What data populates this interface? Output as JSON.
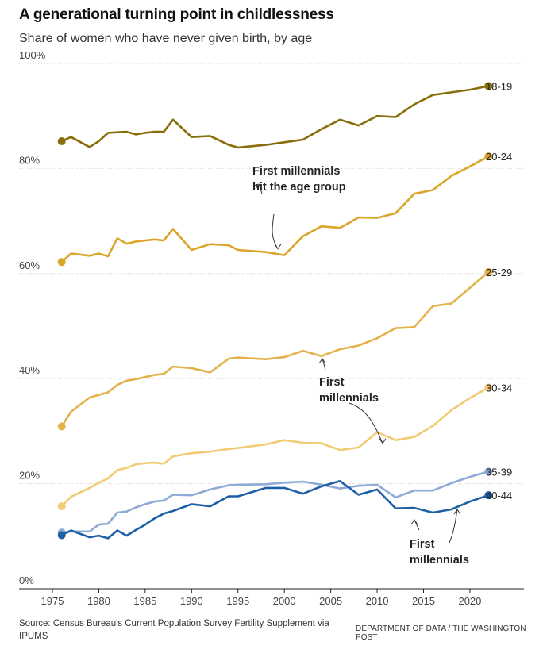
{
  "title": "A generational turning point in childlessness",
  "subtitle": "Share of women who have never given birth, by age",
  "source": "Source: Census Bureau's Current Population Survey Fertility Supplement via IPUMS",
  "credit": "DEPARTMENT OF DATA / THE WASHINGTON POST",
  "chart_data": {
    "type": "line",
    "title": "A generational turning point in childlessness",
    "subtitle": "Share of women who have never given birth, by age",
    "xlabel": "",
    "ylabel": "",
    "xlim": [
      1975,
      2023
    ],
    "ylim": [
      0,
      100
    ],
    "x_ticks": [
      "1975",
      "1980",
      "1985",
      "1990",
      "1995",
      "2000",
      "2005",
      "2010",
      "2015",
      "2020"
    ],
    "y_ticks": [
      "0%",
      "20%",
      "40%",
      "60%",
      "80%",
      "100%"
    ],
    "grid": "horizontal",
    "legend": "labels at line ends (right)",
    "x": [
      1976,
      1977,
      1979,
      1980,
      1981,
      1982,
      1983,
      1984,
      1985,
      1986,
      1987,
      1988,
      1990,
      1992,
      1994,
      1995,
      1998,
      2000,
      2002,
      2004,
      2006,
      2008,
      2010,
      2012,
      2014,
      2016,
      2018,
      2020,
      2022
    ],
    "series": [
      {
        "name": "18-19",
        "color": "#8a6d0b",
        "values": [
          85.2,
          86.0,
          84.1,
          85.2,
          86.8,
          86.9,
          87.0,
          86.5,
          86.8,
          87.0,
          87.0,
          89.3,
          86.0,
          86.2,
          84.5,
          84.0,
          84.5,
          85.0,
          85.5,
          87.5,
          89.3,
          88.2,
          90.0,
          89.8,
          92.2,
          94.0,
          94.5,
          95.0,
          95.7
        ]
      },
      {
        "name": "20-24",
        "color": "#d9a62a",
        "values": [
          62.2,
          63.8,
          63.4,
          63.8,
          63.3,
          66.7,
          65.7,
          66.1,
          66.3,
          66.5,
          66.3,
          68.5,
          64.5,
          65.6,
          65.4,
          64.5,
          64.1,
          63.5,
          67.1,
          69.0,
          68.7,
          70.7,
          70.6,
          71.5,
          75.2,
          75.9,
          78.6,
          80.4,
          82.3
        ]
      },
      {
        "name": "25-29",
        "color": "#e3b24a",
        "values": [
          30.9,
          33.7,
          36.4,
          36.9,
          37.4,
          38.8,
          39.6,
          39.9,
          40.3,
          40.7,
          40.9,
          42.3,
          42.0,
          41.2,
          43.8,
          44.0,
          43.7,
          44.1,
          45.3,
          44.3,
          45.6,
          46.3,
          47.7,
          49.6,
          49.8,
          53.8,
          54.3,
          57.3,
          60.3
        ]
      },
      {
        "name": "30-34",
        "color": "#f1cc75",
        "values": [
          15.7,
          17.5,
          19.2,
          20.2,
          21.0,
          22.6,
          23.0,
          23.7,
          23.9,
          24.0,
          23.8,
          25.2,
          25.8,
          26.1,
          26.6,
          26.8,
          27.5,
          28.3,
          27.8,
          27.7,
          26.4,
          26.9,
          29.8,
          28.3,
          28.9,
          31.0,
          34.0,
          36.3,
          38.3
        ]
      },
      {
        "name": "35-39",
        "color": "#8eaad6",
        "values": [
          10.7,
          10.9,
          10.9,
          12.2,
          12.4,
          14.5,
          14.7,
          15.5,
          16.1,
          16.6,
          16.8,
          17.9,
          17.8,
          18.9,
          19.7,
          19.8,
          19.9,
          20.2,
          20.4,
          19.8,
          19.1,
          19.6,
          19.8,
          17.4,
          18.7,
          18.7,
          20.1,
          21.3,
          22.3
        ]
      },
      {
        "name": "40-44",
        "color": "#1f5fa6",
        "values": [
          10.2,
          11.1,
          9.8,
          10.1,
          9.6,
          11.1,
          10.1,
          11.2,
          12.2,
          13.4,
          14.3,
          14.8,
          16.1,
          15.7,
          17.6,
          17.6,
          19.2,
          19.2,
          18.1,
          19.5,
          20.5,
          17.9,
          18.9,
          15.3,
          15.4,
          14.5,
          15.1,
          16.6,
          17.8
        ]
      }
    ],
    "annotations": [
      {
        "text": [
          "First millennials",
          "hit the age group"
        ],
        "series": "20-24",
        "x": 2000
      },
      {
        "text": [
          "First",
          "millennials"
        ],
        "series": "30-34",
        "x": 2010
      },
      {
        "text": [
          "First",
          "millennials"
        ],
        "series": "40-44",
        "x": 2014
      }
    ]
  }
}
